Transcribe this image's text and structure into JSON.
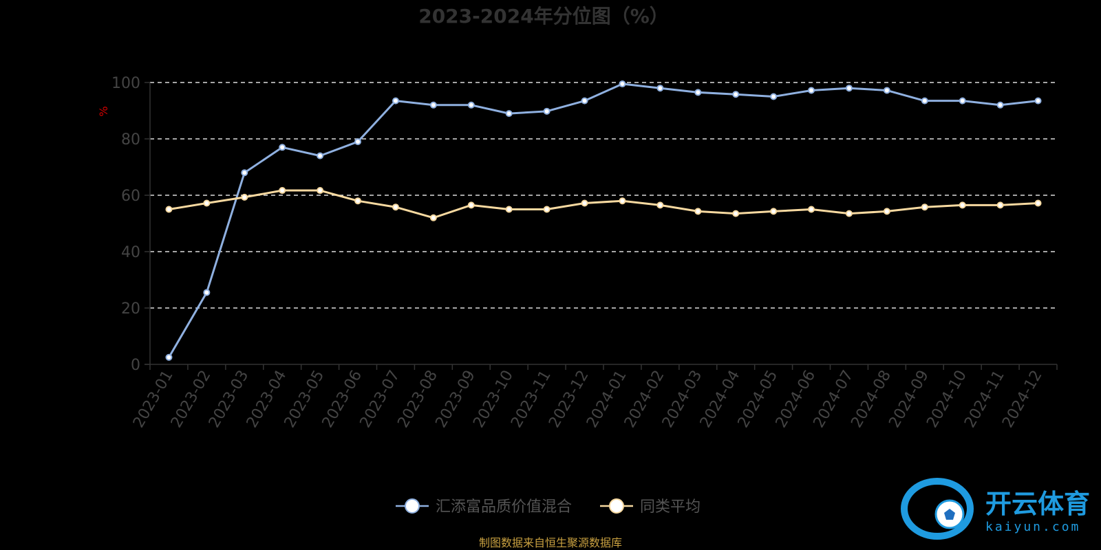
{
  "chart_data": {
    "type": "line",
    "title": "2023-2024年分位图（%）",
    "ylabel": "%",
    "xlabel": "",
    "ylim": [
      0,
      100
    ],
    "yticks": [
      0,
      20,
      40,
      60,
      80,
      100
    ],
    "grid": true,
    "grid_style": "dashed",
    "legend_position": "bottom-center",
    "categories": [
      "2023-01",
      "2023-02",
      "2023-03",
      "2023-04",
      "2023-05",
      "2023-06",
      "2023-07",
      "2023-08",
      "2023-09",
      "2023-10",
      "2023-11",
      "2023-12",
      "2024-01",
      "2024-02",
      "2024-03",
      "2024-04",
      "2024-05",
      "2024-06",
      "2024-07",
      "2024-08",
      "2024-09",
      "2024-10",
      "2024-11",
      "2024-12"
    ],
    "series": [
      {
        "name": "汇添富品质价值混合",
        "color": "#8fb0e0",
        "values": [
          2.5,
          25.5,
          68,
          77,
          74,
          79,
          93.5,
          92,
          92,
          89,
          89.8,
          93.5,
          99.5,
          98,
          96.5,
          95.8,
          95,
          97.2,
          98,
          97.2,
          93.5,
          93.5,
          92,
          93.5
        ]
      },
      {
        "name": "同类平均",
        "color": "#f7d9a0",
        "values": [
          55,
          57.2,
          59.3,
          61.7,
          61.7,
          58,
          55.8,
          52,
          56.5,
          55,
          55,
          57.2,
          58,
          56.5,
          54.3,
          53.5,
          54.3,
          55,
          53.5,
          54.3,
          55.8,
          56.5,
          56.5,
          57.2
        ]
      }
    ]
  },
  "source_note": "制图数据来自恒生聚源数据库",
  "watermark": {
    "cn": "开云体育",
    "en": "kaiyun.com"
  }
}
